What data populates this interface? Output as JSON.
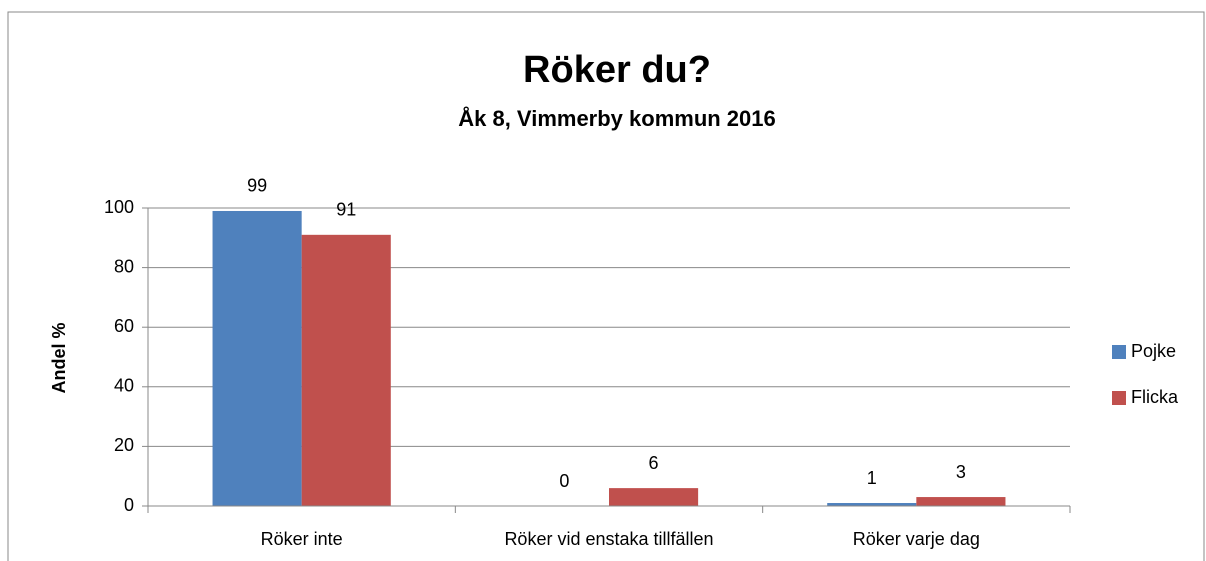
{
  "chart_data": {
    "type": "bar",
    "title": "Röker du?",
    "subtitle": "Åk 8, Vimmerby kommun 2016",
    "ylabel": "Andel %",
    "categories": [
      "Röker inte",
      "Röker vid enstaka tillfällen",
      "Röker varje dag"
    ],
    "series": [
      {
        "name": "Pojke",
        "color": "#4f81bd",
        "values": [
          99,
          0,
          1
        ]
      },
      {
        "name": "Flicka",
        "color": "#c0504d",
        "values": [
          91,
          6,
          3
        ]
      }
    ],
    "ylim": [
      0,
      100
    ],
    "yticks": [
      0,
      20,
      40,
      60,
      80,
      100
    ],
    "grid": true,
    "legend": "right"
  }
}
